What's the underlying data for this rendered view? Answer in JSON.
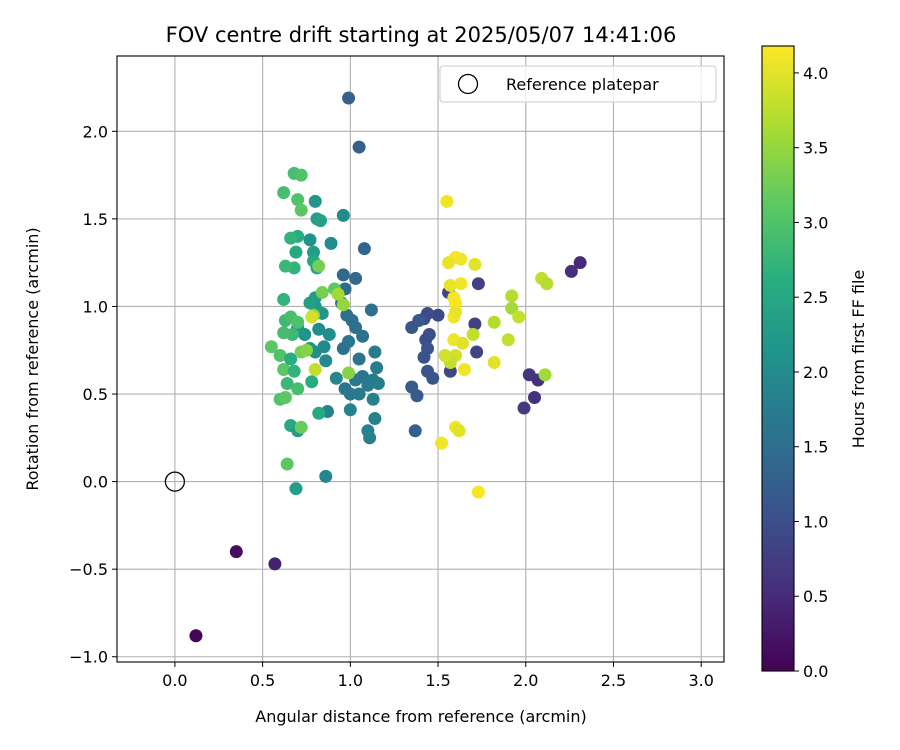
{
  "chart_data": {
    "type": "scatter",
    "title": "FOV centre drift starting at 2025/05/07 14:41:06",
    "xlabel": "Angular distance from reference (arcmin)",
    "ylabel": "Rotation from reference (arcmin)",
    "xlim": [
      -0.33,
      3.13
    ],
    "ylim": [
      -1.03,
      2.43
    ],
    "xticks": [
      0.0,
      0.5,
      1.0,
      1.5,
      2.0,
      2.5,
      3.0
    ],
    "xtick_labels": [
      "0.0",
      "0.5",
      "1.0",
      "1.5",
      "2.0",
      "2.5",
      "3.0"
    ],
    "yticks": [
      -1.0,
      -0.5,
      0.0,
      0.5,
      1.0,
      1.5,
      2.0
    ],
    "ytick_labels": [
      "−1.0",
      "−0.5",
      "0.0",
      "0.5",
      "1.0",
      "1.5",
      "2.0"
    ],
    "grid": true,
    "legend": {
      "position": "top-right",
      "entries": [
        "Reference platepar"
      ]
    },
    "reference_point": {
      "x": 0.0,
      "y": 0.0,
      "marker": "open-circle"
    },
    "colorbar": {
      "label": "Hours from first FF file",
      "colormap": "viridis",
      "min": 0.0,
      "max": 4.18,
      "ticks": [
        0.0,
        0.5,
        1.0,
        1.5,
        2.0,
        2.5,
        3.0,
        3.5,
        4.0
      ],
      "tick_labels": [
        "0.0",
        "0.5",
        "1.0",
        "1.5",
        "2.0",
        "2.5",
        "3.0",
        "3.5",
        "4.0"
      ]
    },
    "points": [
      {
        "x": 0.12,
        "y": -0.88,
        "c": 0.05
      },
      {
        "x": 0.35,
        "y": -0.4,
        "c": 0.15
      },
      {
        "x": 0.57,
        "y": -0.47,
        "c": 0.4
      },
      {
        "x": 2.31,
        "y": 1.25,
        "c": 0.5
      },
      {
        "x": 2.26,
        "y": 1.2,
        "c": 0.55
      },
      {
        "x": 2.05,
        "y": 0.48,
        "c": 0.6
      },
      {
        "x": 2.07,
        "y": 0.58,
        "c": 0.6
      },
      {
        "x": 2.02,
        "y": 0.61,
        "c": 0.65
      },
      {
        "x": 1.99,
        "y": 0.42,
        "c": 0.7
      },
      {
        "x": 1.73,
        "y": 1.13,
        "c": 0.8
      },
      {
        "x": 1.71,
        "y": 0.9,
        "c": 0.8
      },
      {
        "x": 1.72,
        "y": 0.74,
        "c": 0.85
      },
      {
        "x": 1.56,
        "y": 1.08,
        "c": 0.85
      },
      {
        "x": 1.57,
        "y": 0.63,
        "c": 0.9
      },
      {
        "x": 1.5,
        "y": 0.95,
        "c": 0.9
      },
      {
        "x": 1.44,
        "y": 0.96,
        "c": 0.95
      },
      {
        "x": 1.42,
        "y": 0.93,
        "c": 0.95
      },
      {
        "x": 1.45,
        "y": 0.84,
        "c": 1.0
      },
      {
        "x": 1.43,
        "y": 0.81,
        "c": 1.0
      },
      {
        "x": 1.44,
        "y": 0.76,
        "c": 1.05
      },
      {
        "x": 1.42,
        "y": 0.71,
        "c": 1.05
      },
      {
        "x": 1.44,
        "y": 0.63,
        "c": 1.1
      },
      {
        "x": 1.47,
        "y": 0.59,
        "c": 1.1
      },
      {
        "x": 1.35,
        "y": 0.88,
        "c": 1.15
      },
      {
        "x": 1.39,
        "y": 0.92,
        "c": 1.15
      },
      {
        "x": 1.35,
        "y": 0.54,
        "c": 1.2
      },
      {
        "x": 1.38,
        "y": 0.49,
        "c": 1.2
      },
      {
        "x": 1.37,
        "y": 0.29,
        "c": 1.25
      },
      {
        "x": 0.99,
        "y": 2.19,
        "c": 1.3
      },
      {
        "x": 1.05,
        "y": 1.91,
        "c": 1.3
      },
      {
        "x": 1.08,
        "y": 1.33,
        "c": 1.35
      },
      {
        "x": 0.96,
        "y": 1.18,
        "c": 1.4
      },
      {
        "x": 1.03,
        "y": 1.16,
        "c": 1.4
      },
      {
        "x": 0.97,
        "y": 1.1,
        "c": 1.45
      },
      {
        "x": 0.95,
        "y": 1.02,
        "c": 1.45
      },
      {
        "x": 0.98,
        "y": 0.95,
        "c": 1.5
      },
      {
        "x": 1.01,
        "y": 0.92,
        "c": 1.5
      },
      {
        "x": 1.03,
        "y": 0.88,
        "c": 1.5
      },
      {
        "x": 1.07,
        "y": 0.83,
        "c": 1.55
      },
      {
        "x": 1.12,
        "y": 0.98,
        "c": 1.55
      },
      {
        "x": 0.96,
        "y": 0.76,
        "c": 1.55
      },
      {
        "x": 0.99,
        "y": 0.8,
        "c": 1.6
      },
      {
        "x": 1.05,
        "y": 0.7,
        "c": 1.6
      },
      {
        "x": 1.07,
        "y": 0.6,
        "c": 1.6
      },
      {
        "x": 1.03,
        "y": 0.58,
        "c": 1.65
      },
      {
        "x": 0.97,
        "y": 0.53,
        "c": 1.65
      },
      {
        "x": 1.0,
        "y": 0.5,
        "c": 1.65
      },
      {
        "x": 1.05,
        "y": 0.5,
        "c": 1.7
      },
      {
        "x": 1.1,
        "y": 0.55,
        "c": 1.7
      },
      {
        "x": 1.13,
        "y": 0.58,
        "c": 1.7
      },
      {
        "x": 1.14,
        "y": 0.74,
        "c": 1.75
      },
      {
        "x": 1.15,
        "y": 0.65,
        "c": 1.75
      },
      {
        "x": 1.16,
        "y": 0.56,
        "c": 1.75
      },
      {
        "x": 1.13,
        "y": 0.47,
        "c": 1.8
      },
      {
        "x": 1.1,
        "y": 0.29,
        "c": 1.8
      },
      {
        "x": 1.11,
        "y": 0.25,
        "c": 1.8
      },
      {
        "x": 1.14,
        "y": 0.36,
        "c": 1.85
      },
      {
        "x": 1.0,
        "y": 0.41,
        "c": 1.85
      },
      {
        "x": 0.87,
        "y": 0.4,
        "c": 1.85
      },
      {
        "x": 0.86,
        "y": 0.03,
        "c": 1.9
      },
      {
        "x": 0.69,
        "y": -0.04,
        "c": 2.3
      },
      {
        "x": 0.92,
        "y": 0.59,
        "c": 1.9
      },
      {
        "x": 0.86,
        "y": 0.69,
        "c": 1.95
      },
      {
        "x": 0.85,
        "y": 0.77,
        "c": 1.95
      },
      {
        "x": 0.88,
        "y": 0.84,
        "c": 2.0
      },
      {
        "x": 0.82,
        "y": 0.87,
        "c": 2.0
      },
      {
        "x": 0.8,
        "y": 0.74,
        "c": 2.05
      },
      {
        "x": 0.77,
        "y": 0.76,
        "c": 2.1
      },
      {
        "x": 0.74,
        "y": 0.84,
        "c": 2.15
      },
      {
        "x": 0.7,
        "y": 0.88,
        "c": 2.2
      },
      {
        "x": 0.84,
        "y": 0.96,
        "c": 2.2
      },
      {
        "x": 0.8,
        "y": 1.0,
        "c": 2.25
      },
      {
        "x": 0.8,
        "y": 1.05,
        "c": 2.3
      },
      {
        "x": 0.77,
        "y": 1.02,
        "c": 2.35
      },
      {
        "x": 0.77,
        "y": 1.38,
        "c": 2.1
      },
      {
        "x": 0.89,
        "y": 1.36,
        "c": 2.0
      },
      {
        "x": 0.96,
        "y": 1.52,
        "c": 1.95
      },
      {
        "x": 0.8,
        "y": 1.6,
        "c": 2.2
      },
      {
        "x": 0.81,
        "y": 1.5,
        "c": 2.3
      },
      {
        "x": 0.83,
        "y": 1.49,
        "c": 2.4
      },
      {
        "x": 0.79,
        "y": 1.31,
        "c": 2.3
      },
      {
        "x": 0.81,
        "y": 1.22,
        "c": 2.4
      },
      {
        "x": 0.79,
        "y": 1.26,
        "c": 2.5
      },
      {
        "x": 0.69,
        "y": 1.31,
        "c": 2.5
      },
      {
        "x": 0.7,
        "y": 1.4,
        "c": 2.6
      },
      {
        "x": 0.66,
        "y": 1.39,
        "c": 2.7
      },
      {
        "x": 0.62,
        "y": 1.65,
        "c": 2.9
      },
      {
        "x": 0.68,
        "y": 1.76,
        "c": 2.9
      },
      {
        "x": 0.72,
        "y": 1.75,
        "c": 3.0
      },
      {
        "x": 0.7,
        "y": 1.61,
        "c": 3.0
      },
      {
        "x": 0.72,
        "y": 1.55,
        "c": 3.1
      },
      {
        "x": 0.68,
        "y": 1.22,
        "c": 2.7
      },
      {
        "x": 0.63,
        "y": 1.23,
        "c": 2.8
      },
      {
        "x": 0.62,
        "y": 1.04,
        "c": 2.7
      },
      {
        "x": 0.63,
        "y": 0.92,
        "c": 2.8
      },
      {
        "x": 0.66,
        "y": 0.94,
        "c": 2.9
      },
      {
        "x": 0.7,
        "y": 0.91,
        "c": 3.0
      },
      {
        "x": 0.67,
        "y": 0.84,
        "c": 2.8
      },
      {
        "x": 0.62,
        "y": 0.85,
        "c": 2.9
      },
      {
        "x": 0.6,
        "y": 0.72,
        "c": 3.0
      },
      {
        "x": 0.55,
        "y": 0.77,
        "c": 3.1
      },
      {
        "x": 0.62,
        "y": 0.64,
        "c": 3.1
      },
      {
        "x": 0.66,
        "y": 0.7,
        "c": 2.6
      },
      {
        "x": 0.68,
        "y": 0.63,
        "c": 2.7
      },
      {
        "x": 0.64,
        "y": 0.56,
        "c": 2.8
      },
      {
        "x": 0.7,
        "y": 0.53,
        "c": 2.9
      },
      {
        "x": 0.6,
        "y": 0.47,
        "c": 3.0
      },
      {
        "x": 0.63,
        "y": 0.48,
        "c": 3.1
      },
      {
        "x": 0.78,
        "y": 0.57,
        "c": 2.6
      },
      {
        "x": 0.82,
        "y": 0.39,
        "c": 2.5
      },
      {
        "x": 0.66,
        "y": 0.32,
        "c": 2.5
      },
      {
        "x": 0.7,
        "y": 0.29,
        "c": 2.3
      },
      {
        "x": 0.72,
        "y": 0.31,
        "c": 3.2
      },
      {
        "x": 0.64,
        "y": 0.1,
        "c": 3.1
      },
      {
        "x": 0.72,
        "y": 0.74,
        "c": 3.3
      },
      {
        "x": 0.75,
        "y": 0.75,
        "c": 3.4
      },
      {
        "x": 0.79,
        "y": 0.95,
        "c": 3.5
      },
      {
        "x": 0.78,
        "y": 0.94,
        "c": 3.9
      },
      {
        "x": 0.8,
        "y": 0.64,
        "c": 3.8
      },
      {
        "x": 0.82,
        "y": 1.23,
        "c": 3.3
      },
      {
        "x": 0.84,
        "y": 1.08,
        "c": 3.3
      },
      {
        "x": 0.91,
        "y": 1.1,
        "c": 3.1
      },
      {
        "x": 0.93,
        "y": 1.07,
        "c": 3.6
      },
      {
        "x": 0.96,
        "y": 1.01,
        "c": 3.5
      },
      {
        "x": 0.99,
        "y": 0.62,
        "c": 3.4
      },
      {
        "x": 1.55,
        "y": 1.6,
        "c": 4.1
      },
      {
        "x": 1.6,
        "y": 1.28,
        "c": 4.15
      },
      {
        "x": 1.63,
        "y": 1.27,
        "c": 4.1
      },
      {
        "x": 1.56,
        "y": 1.25,
        "c": 4.05
      },
      {
        "x": 1.71,
        "y": 1.24,
        "c": 4.0
      },
      {
        "x": 1.63,
        "y": 1.13,
        "c": 4.1
      },
      {
        "x": 1.57,
        "y": 1.12,
        "c": 4.05
      },
      {
        "x": 1.59,
        "y": 1.05,
        "c": 4.1
      },
      {
        "x": 1.6,
        "y": 1.02,
        "c": 4.15
      },
      {
        "x": 1.59,
        "y": 0.94,
        "c": 4.1
      },
      {
        "x": 1.6,
        "y": 0.97,
        "c": 4.05
      },
      {
        "x": 1.59,
        "y": 0.81,
        "c": 4.1
      },
      {
        "x": 1.64,
        "y": 0.79,
        "c": 4.0
      },
      {
        "x": 1.6,
        "y": 0.72,
        "c": 3.9
      },
      {
        "x": 1.57,
        "y": 0.68,
        "c": 3.8
      },
      {
        "x": 1.54,
        "y": 0.72,
        "c": 3.9
      },
      {
        "x": 1.65,
        "y": 0.64,
        "c": 4.1
      },
      {
        "x": 1.7,
        "y": 0.84,
        "c": 3.8
      },
      {
        "x": 1.6,
        "y": 0.31,
        "c": 4.1
      },
      {
        "x": 1.62,
        "y": 0.29,
        "c": 4.0
      },
      {
        "x": 1.52,
        "y": 0.22,
        "c": 4.1
      },
      {
        "x": 1.73,
        "y": -0.06,
        "c": 4.15
      },
      {
        "x": 1.82,
        "y": 0.91,
        "c": 3.7
      },
      {
        "x": 1.82,
        "y": 0.68,
        "c": 4.0
      },
      {
        "x": 1.9,
        "y": 0.81,
        "c": 3.8
      },
      {
        "x": 1.92,
        "y": 1.06,
        "c": 3.7
      },
      {
        "x": 1.92,
        "y": 0.99,
        "c": 3.6
      },
      {
        "x": 1.96,
        "y": 0.94,
        "c": 3.8
      },
      {
        "x": 2.09,
        "y": 1.16,
        "c": 3.8
      },
      {
        "x": 2.12,
        "y": 1.13,
        "c": 3.7
      },
      {
        "x": 2.11,
        "y": 0.61,
        "c": 3.6
      }
    ]
  }
}
